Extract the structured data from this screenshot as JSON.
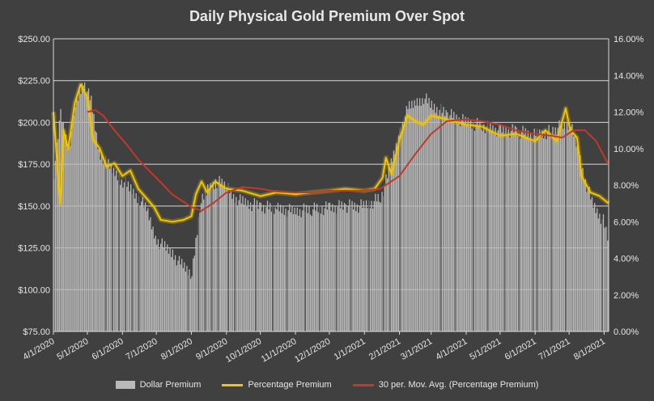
{
  "chart_data": {
    "type": "bar+line",
    "title": "Daily Physical Gold Premium Over Spot",
    "xlabel": "",
    "ylabel": "",
    "ylim": [
      75,
      250
    ],
    "y2lim": [
      0,
      16
    ],
    "y_ticks": [
      "$75.00",
      "$100.00",
      "$125.00",
      "$150.00",
      "$175.00",
      "$200.00",
      "$225.00",
      "$250.00"
    ],
    "y2_ticks": [
      "0.00%",
      "2.00%",
      "4.00%",
      "6.00%",
      "8.00%",
      "10.00%",
      "12.00%",
      "14.00%",
      "16.00%"
    ],
    "x_ticks": [
      "4/1/2020",
      "5/1/2020",
      "6/1/2020",
      "7/1/2020",
      "8/1/2020",
      "9/1/2020",
      "10/1/2020",
      "11/1/2020",
      "12/1/2020",
      "1/1/2021",
      "2/1/2021",
      "3/1/2021",
      "4/1/2021",
      "5/1/2021",
      "6/1/2021",
      "7/1/2021",
      "8/1/2021"
    ],
    "x_range": [
      "2020-04-01",
      "2021-08-05"
    ],
    "grid": "horizontal",
    "legend_position": "bottom",
    "colors": {
      "bars": "#b9b9b9",
      "percentage": "#f2c500",
      "moving_avg": "#c0392b",
      "background": "#404040"
    },
    "series": [
      {
        "name": "Dollar Premium",
        "kind": "bar",
        "axis": "left",
        "points": [
          {
            "date": "2020-04-01",
            "y": 170
          },
          {
            "date": "2020-04-07",
            "y": 205
          },
          {
            "date": "2020-04-14",
            "y": 185
          },
          {
            "date": "2020-04-20",
            "y": 210
          },
          {
            "date": "2020-04-27",
            "y": 225
          },
          {
            "date": "2020-05-04",
            "y": 212
          },
          {
            "date": "2020-05-11",
            "y": 182
          },
          {
            "date": "2020-05-18",
            "y": 175
          },
          {
            "date": "2020-05-25",
            "y": 170
          },
          {
            "date": "2020-06-01",
            "y": 165
          },
          {
            "date": "2020-06-08",
            "y": 160
          },
          {
            "date": "2020-06-15",
            "y": 155
          },
          {
            "date": "2020-06-22",
            "y": 148
          },
          {
            "date": "2020-07-01",
            "y": 130
          },
          {
            "date": "2020-07-08",
            "y": 125
          },
          {
            "date": "2020-07-15",
            "y": 122
          },
          {
            "date": "2020-07-22",
            "y": 115
          },
          {
            "date": "2020-08-01",
            "y": 110
          },
          {
            "date": "2020-08-08",
            "y": 150
          },
          {
            "date": "2020-08-15",
            "y": 160
          },
          {
            "date": "2020-08-22",
            "y": 165
          },
          {
            "date": "2020-09-01",
            "y": 162
          },
          {
            "date": "2020-09-08",
            "y": 155
          },
          {
            "date": "2020-09-15",
            "y": 152
          },
          {
            "date": "2020-10-01",
            "y": 150
          },
          {
            "date": "2020-10-15",
            "y": 148
          },
          {
            "date": "2020-11-01",
            "y": 147
          },
          {
            "date": "2020-11-15",
            "y": 148
          },
          {
            "date": "2020-12-01",
            "y": 149
          },
          {
            "date": "2020-12-15",
            "y": 150
          },
          {
            "date": "2021-01-01",
            "y": 150
          },
          {
            "date": "2021-01-15",
            "y": 155
          },
          {
            "date": "2021-01-22",
            "y": 170
          },
          {
            "date": "2021-02-01",
            "y": 195
          },
          {
            "date": "2021-02-08",
            "y": 208
          },
          {
            "date": "2021-02-15",
            "y": 212
          },
          {
            "date": "2021-02-22",
            "y": 215
          },
          {
            "date": "2021-03-01",
            "y": 210
          },
          {
            "date": "2021-03-15",
            "y": 205
          },
          {
            "date": "2021-04-01",
            "y": 200
          },
          {
            "date": "2021-04-15",
            "y": 198
          },
          {
            "date": "2021-05-01",
            "y": 195
          },
          {
            "date": "2021-05-15",
            "y": 195
          },
          {
            "date": "2021-06-01",
            "y": 192
          },
          {
            "date": "2021-06-15",
            "y": 195
          },
          {
            "date": "2021-07-01",
            "y": 200
          },
          {
            "date": "2021-07-08",
            "y": 185
          },
          {
            "date": "2021-07-15",
            "y": 165
          },
          {
            "date": "2021-07-22",
            "y": 150
          },
          {
            "date": "2021-08-01",
            "y": 140
          },
          {
            "date": "2021-08-05",
            "y": 130
          }
        ]
      },
      {
        "name": "Percentage Premium",
        "kind": "line",
        "axis": "right",
        "points": [
          {
            "date": "2020-04-01",
            "y": 12.0
          },
          {
            "date": "2020-04-07",
            "y": 7.0
          },
          {
            "date": "2020-04-10",
            "y": 11.0
          },
          {
            "date": "2020-04-14",
            "y": 10.0
          },
          {
            "date": "2020-04-20",
            "y": 12.5
          },
          {
            "date": "2020-04-25",
            "y": 13.5
          },
          {
            "date": "2020-05-01",
            "y": 12.8
          },
          {
            "date": "2020-05-06",
            "y": 10.5
          },
          {
            "date": "2020-05-12",
            "y": 10.0
          },
          {
            "date": "2020-05-18",
            "y": 9.0
          },
          {
            "date": "2020-05-25",
            "y": 9.2
          },
          {
            "date": "2020-06-01",
            "y": 8.5
          },
          {
            "date": "2020-06-08",
            "y": 8.8
          },
          {
            "date": "2020-06-15",
            "y": 7.8
          },
          {
            "date": "2020-06-22",
            "y": 7.3
          },
          {
            "date": "2020-06-29",
            "y": 6.8
          },
          {
            "date": "2020-07-05",
            "y": 6.1
          },
          {
            "date": "2020-07-15",
            "y": 6.0
          },
          {
            "date": "2020-07-25",
            "y": 6.1
          },
          {
            "date": "2020-08-01",
            "y": 6.3
          },
          {
            "date": "2020-08-05",
            "y": 7.5
          },
          {
            "date": "2020-08-10",
            "y": 8.2
          },
          {
            "date": "2020-08-15",
            "y": 7.6
          },
          {
            "date": "2020-08-22",
            "y": 8.2
          },
          {
            "date": "2020-09-01",
            "y": 7.8
          },
          {
            "date": "2020-09-15",
            "y": 7.7
          },
          {
            "date": "2020-10-01",
            "y": 7.4
          },
          {
            "date": "2020-10-15",
            "y": 7.6
          },
          {
            "date": "2020-11-01",
            "y": 7.5
          },
          {
            "date": "2020-11-15",
            "y": 7.6
          },
          {
            "date": "2020-12-01",
            "y": 7.7
          },
          {
            "date": "2020-12-15",
            "y": 7.8
          },
          {
            "date": "2021-01-01",
            "y": 7.7
          },
          {
            "date": "2021-01-10",
            "y": 7.8
          },
          {
            "date": "2021-01-17",
            "y": 8.4
          },
          {
            "date": "2021-01-20",
            "y": 9.5
          },
          {
            "date": "2021-01-25",
            "y": 8.6
          },
          {
            "date": "2021-02-01",
            "y": 10.5
          },
          {
            "date": "2021-02-08",
            "y": 11.8
          },
          {
            "date": "2021-02-15",
            "y": 11.5
          },
          {
            "date": "2021-02-22",
            "y": 11.3
          },
          {
            "date": "2021-03-01",
            "y": 11.8
          },
          {
            "date": "2021-03-15",
            "y": 11.6
          },
          {
            "date": "2021-04-01",
            "y": 11.3
          },
          {
            "date": "2021-04-15",
            "y": 11.2
          },
          {
            "date": "2021-05-01",
            "y": 10.7
          },
          {
            "date": "2021-05-15",
            "y": 10.8
          },
          {
            "date": "2021-06-01",
            "y": 10.4
          },
          {
            "date": "2021-06-10",
            "y": 11.0
          },
          {
            "date": "2021-06-20",
            "y": 10.4
          },
          {
            "date": "2021-06-28",
            "y": 12.2
          },
          {
            "date": "2021-07-02",
            "y": 11.0
          },
          {
            "date": "2021-07-08",
            "y": 10.6
          },
          {
            "date": "2021-07-12",
            "y": 8.5
          },
          {
            "date": "2021-07-20",
            "y": 7.6
          },
          {
            "date": "2021-07-28",
            "y": 7.4
          },
          {
            "date": "2021-08-05",
            "y": 7.0
          }
        ]
      },
      {
        "name": "30 per. Mov. Avg. (Percentage Premium)",
        "kind": "line",
        "axis": "right",
        "points": [
          {
            "date": "2020-05-01",
            "y": 12.0
          },
          {
            "date": "2020-05-08",
            "y": 12.1
          },
          {
            "date": "2020-05-15",
            "y": 11.8
          },
          {
            "date": "2020-05-25",
            "y": 11.0
          },
          {
            "date": "2020-06-05",
            "y": 10.2
          },
          {
            "date": "2020-06-15",
            "y": 9.4
          },
          {
            "date": "2020-07-01",
            "y": 8.4
          },
          {
            "date": "2020-07-15",
            "y": 7.5
          },
          {
            "date": "2020-08-01",
            "y": 6.8
          },
          {
            "date": "2020-08-10",
            "y": 6.6
          },
          {
            "date": "2020-08-20",
            "y": 7.0
          },
          {
            "date": "2020-09-01",
            "y": 7.6
          },
          {
            "date": "2020-09-15",
            "y": 7.9
          },
          {
            "date": "2020-10-01",
            "y": 7.8
          },
          {
            "date": "2020-10-15",
            "y": 7.65
          },
          {
            "date": "2020-11-01",
            "y": 7.6
          },
          {
            "date": "2020-11-15",
            "y": 7.6
          },
          {
            "date": "2020-12-01",
            "y": 7.7
          },
          {
            "date": "2020-12-15",
            "y": 7.7
          },
          {
            "date": "2021-01-01",
            "y": 7.7
          },
          {
            "date": "2021-01-15",
            "y": 7.8
          },
          {
            "date": "2021-02-01",
            "y": 8.5
          },
          {
            "date": "2021-02-15",
            "y": 9.7
          },
          {
            "date": "2021-03-01",
            "y": 10.8
          },
          {
            "date": "2021-03-15",
            "y": 11.5
          },
          {
            "date": "2021-04-01",
            "y": 11.6
          },
          {
            "date": "2021-04-15",
            "y": 11.5
          },
          {
            "date": "2021-05-01",
            "y": 11.3
          },
          {
            "date": "2021-05-15",
            "y": 11.0
          },
          {
            "date": "2021-06-01",
            "y": 10.8
          },
          {
            "date": "2021-06-15",
            "y": 10.7
          },
          {
            "date": "2021-06-25",
            "y": 10.6
          },
          {
            "date": "2021-07-05",
            "y": 11.0
          },
          {
            "date": "2021-07-15",
            "y": 11.0
          },
          {
            "date": "2021-07-25",
            "y": 10.4
          },
          {
            "date": "2021-08-05",
            "y": 9.1
          }
        ]
      }
    ]
  }
}
